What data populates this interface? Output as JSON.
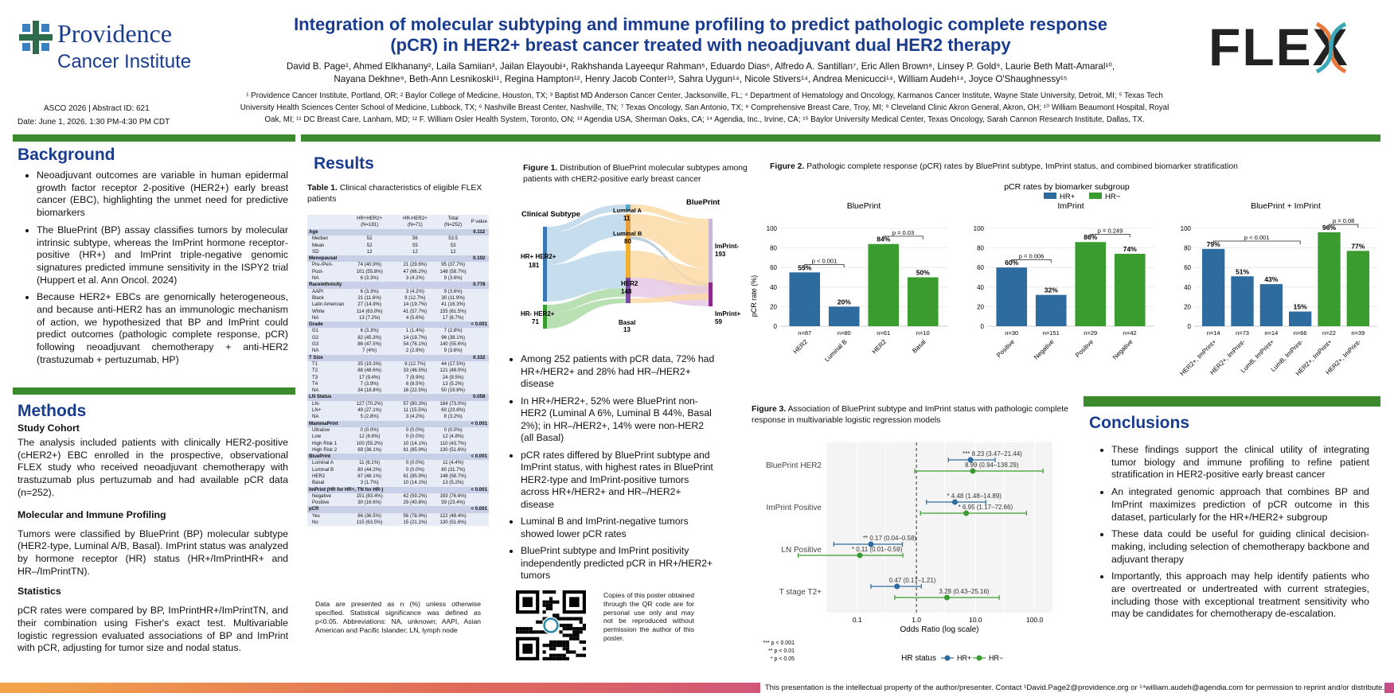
{
  "header": {
    "logo_main": "Providence",
    "logo_sub": "Cancer Institute",
    "flex_logo": "FLEX",
    "title_line1": "Integration of molecular subtyping and immune profiling to predict pathologic complete response",
    "title_line2": "(pCR) in HER2+ breast cancer treated with neoadjuvant dual HER2 therapy",
    "authors_line1": "David B. Page¹, Ahmed Elkhanany², Laila Samiian³, Jailan Elayoubi⁴, Rakhshanda Layeequr Rahman⁵, Eduardo Dias⁶, Alfredo A. Santillan⁷, Eric Allen Brown⁸, Linsey P. Gold⁹, Laurie Beth Matt-Amaral¹⁰,",
    "authors_line2": "Nayana Dekhne⁹, Beth-Ann Lesnikoski¹¹, Regina Hampton¹², Henry Jacob Conter¹³, Sahra Uygun¹⁴, Nicole Stivers¹⁴, Andrea Menicucci¹⁴, William Audeh¹⁴, Joyce O'Shaughnessy¹⁵",
    "affil_line1": "¹ Providence Cancer Institute, Portland, OR; ² Baylor College of Medicine, Houston, TX; ³ Baptist MD Anderson Cancer Center, Jacksonville, FL; ⁴ Department of Hematology and Oncology, Karmanos Cancer Institute, Wayne State University, Detroit, MI; ⁵ Texas Tech",
    "affil_line2": "University Health Sciences Center School of Medicine, Lubbock, TX; ⁶ Nashville Breast Center, Nashville, TN; ⁷ Texas Oncology, San Antonio, TX; ⁸ Comprehensive Breast Care, Troy, MI; ⁹ Cleveland Clinic Akron General, Akron, OH; ¹⁰ William Beaumont Hospital, Royal",
    "affil_line3": "Oak, MI; ¹¹ DC Breast Care, Lanham, MD; ¹² F. William Osler Health System, Toronto, ON; ¹³ Agendia USA, Sherman Oaks, CA; ¹⁴ Agendia, Inc., Irvine, CA; ¹⁵ Baylor University Medical Center, Texas Oncology, Sarah Cannon Research Institute, Dallas, TX.",
    "asco": "ASCO 2026 | Abstract ID: 621",
    "date": "Date: June 1, 2026, 1:30 PM-4:30 PM CDT"
  },
  "background": {
    "heading": "Background",
    "bullets": [
      "Neoadjuvant outcomes are variable in human epidermal growth factor receptor 2-positive (HER2+) early breast cancer (EBC), highlighting the unmet need for predictive biomarkers",
      "The BluePrint (BP) assay classifies tumors by molecular intrinsic subtype, whereas the ImPrint hormone receptor-positive (HR+) and ImPrint triple-negative genomic signatures predicted immune sensitivity in the ISPY2 trial (Huppert et al. Ann Oncol. 2024)",
      "Because HER2+ EBCs are genomically heterogeneous, and because anti-HER2 has an immunologic mechanism of action, we hypothesized that BP and ImPrint could predict outcomes (pathologic complete response, pCR) following neoadjuvant chemotherapy + anti-HER2 (trastuzumab + pertuzumab, HP)"
    ]
  },
  "methods": {
    "heading": "Methods",
    "sub1": "Study Cohort",
    "p1": "The analysis included patients with clinically HER2-positive (cHER2+) EBC enrolled in the prospective, observational FLEX study who received neoadjuvant chemotherapy with trastuzumab plus pertuzumab and had available pCR data (n=252).",
    "sub2": "Molecular and Immune Profiling",
    "p2": "Tumors were classified by BluePrint (BP) molecular subtype (HER2-type, Luminal A/B, Basal). ImPrint status was analyzed by hormone receptor (HR) status (HR+/ImPrintHR+ and HR–/ImPrintTN).",
    "sub3": "Statistics",
    "p3": "pCR rates were compared by BP, ImPrintHR+/ImPrintTN, and their combination using Fisher's exact test. Multivariable logistic regression evaluated associations of BP and ImPrint with pCR, adjusting for tumor size and nodal status."
  },
  "results": {
    "heading": "Results",
    "table_caption_bold": "Table 1.",
    "table_caption": " Clinical characteristics of eligible FLEX patients",
    "table_header": [
      "",
      "HR+HER2+ (N=181)",
      "HR-HER2+ (N=71)",
      "Total (N=252)",
      "P value"
    ],
    "table_rows": [
      [
        "sec",
        "Age",
        "",
        "",
        "",
        "0.112"
      ],
      [
        "r",
        "Median",
        "52",
        "56",
        "53.5",
        ""
      ],
      [
        "r",
        "Mean",
        "52",
        "55",
        "53",
        ""
      ],
      [
        "r",
        "SD",
        "12",
        "12",
        "12",
        ""
      ],
      [
        "sec",
        "Menopausal",
        "",
        "",
        "",
        "0.102"
      ],
      [
        "r",
        "Pre-/Peri-",
        "74 (40.9%)",
        "21 (29.6%)",
        "95 (37.7%)",
        ""
      ],
      [
        "r",
        "Post-",
        "101 (55.8%)",
        "47 (66.2%)",
        "148 (58.7%)",
        ""
      ],
      [
        "r",
        "NA",
        "6 (3.3%)",
        "3 (4.2%)",
        "9 (3.6%)",
        ""
      ],
      [
        "sec",
        "Race/ethnicity",
        "",
        "",
        "",
        "0.778"
      ],
      [
        "r",
        "AAPI",
        "6 (3.3%)",
        "3 (4.2%)",
        "9 (3.6%)",
        ""
      ],
      [
        "r",
        "Black",
        "21 (11.6%)",
        "9 (12.7%)",
        "30 (11.9%)",
        ""
      ],
      [
        "r",
        "Latin American",
        "27 (14.9%)",
        "14 (19.7%)",
        "41 (16.3%)",
        ""
      ],
      [
        "r",
        "White",
        "114 (63.0%)",
        "41 (57.7%)",
        "155 (61.5%)",
        ""
      ],
      [
        "r",
        "NA",
        "13 (7.2%)",
        "4 (5.6%)",
        "17 (6.7%)",
        ""
      ],
      [
        "sec",
        "Grade",
        "",
        "",
        "",
        "< 0.001"
      ],
      [
        "r",
        "G1",
        "6 (3.3%)",
        "1 (1.4%)",
        "7 (2.8%)",
        ""
      ],
      [
        "r",
        "G2",
        "82 (45.3%)",
        "14 (19.7%)",
        "96 (38.1%)",
        ""
      ],
      [
        "r",
        "G3",
        "86 (47.5%)",
        "54 (76.1%)",
        "140 (55.6%)",
        ""
      ],
      [
        "r",
        "NA",
        "7 (4%)",
        "2 (2.8%)",
        "9 (3.6%)",
        ""
      ],
      [
        "sec",
        "T Size",
        "",
        "",
        "",
        "0.332"
      ],
      [
        "r",
        "T1",
        "35 (19.3%)",
        "9 (12.7%)",
        "44 (17.5%)",
        ""
      ],
      [
        "r",
        "T2",
        "88 (48.6%)",
        "33 (46.5%)",
        "121 (48.0%)",
        ""
      ],
      [
        "r",
        "T3",
        "17 (9.4%)",
        "7 (9.9%)",
        "24 (9.5%)",
        ""
      ],
      [
        "r",
        "T4",
        "7 (3.9%)",
        "6 (8.5%)",
        "13 (5.2%)",
        ""
      ],
      [
        "r",
        "NA",
        "34 (18.8%)",
        "16 (22.5%)",
        "50 (19.8%)",
        ""
      ],
      [
        "sec",
        "LN Status",
        "",
        "",
        "",
        "0.058"
      ],
      [
        "r",
        "LN-",
        "127 (70.2%)",
        "57 (80.3%)",
        "184 (73.0%)",
        ""
      ],
      [
        "r",
        "LN+",
        "49 (27.1%)",
        "11 (15.5%)",
        "60 (23.8%)",
        ""
      ],
      [
        "r",
        "NA",
        "5 (2.8%)",
        "3 (4.2%)",
        "8 (3.2%)",
        ""
      ],
      [
        "sec",
        "MammaPrint",
        "",
        "",
        "",
        "< 0.001"
      ],
      [
        "r",
        "Ultralow",
        "0 (0.0%)",
        "0 (0.0%)",
        "0 (0.0%)",
        ""
      ],
      [
        "r",
        "Low",
        "12 (6.6%)",
        "0 (0.0%)",
        "12 (4.8%)",
        ""
      ],
      [
        "r",
        "High Risk 1",
        "100 (55.2%)",
        "10 (14.1%)",
        "110 (43.7%)",
        ""
      ],
      [
        "r",
        "High Risk 2",
        "69 (38.1%)",
        "61 (85.9%)",
        "130 (51.6%)",
        ""
      ],
      [
        "sec",
        "BluePrint",
        "",
        "",
        "",
        "< 0.001"
      ],
      [
        "r",
        "Luminal A",
        "11 (6.1%)",
        "0 (0.0%)",
        "11 (4.4%)",
        ""
      ],
      [
        "r",
        "Luminal B",
        "80 (44.2%)",
        "0 (0.0%)",
        "80 (31.7%)",
        ""
      ],
      [
        "r",
        "HER2",
        "87 (48.1%)",
        "61 (85.9%)",
        "148 (58.7%)",
        ""
      ],
      [
        "r",
        "Basal",
        "3 (1.7%)",
        "10 (14.1%)",
        "13 (5.2%)",
        ""
      ],
      [
        "sec",
        "ImPrint (HR for HR+, TN for HR-)",
        "",
        "",
        "",
        "< 0.001"
      ],
      [
        "r",
        "Negative",
        "151 (83.4%)",
        "42 (59.2%)",
        "193 (76.6%)",
        ""
      ],
      [
        "r",
        "Positive",
        "30 (16.6%)",
        "29 (40.8%)",
        "59 (23.4%)",
        ""
      ],
      [
        "sec",
        "pCR",
        "",
        "",
        "",
        "< 0.001"
      ],
      [
        "r",
        "Yes",
        "66 (36.5%)",
        "56 (78.9%)",
        "122 (48.4%)",
        ""
      ],
      [
        "r",
        "No",
        "115 (63.5%)",
        "15 (21.1%)",
        "130 (51.6%)",
        ""
      ]
    ],
    "table_note": "Data are presented as n (%) unless otherwise specified. Statistical significance was defined as p<0.05. Abbreviations: NA, unknown; AAPI, Asian American and Pacific Islander; LN, lymph node",
    "fig1_bold": "Figure 1.",
    "fig1_caption": " Distribution of BluePrint molecular subtypes among patients with  cHER2-positive early breast cancer",
    "sankey": {
      "left_title": "Clinical Subtype",
      "right_title": "BluePrint",
      "hr_pos": "HR+ HER2+",
      "hr_pos_n": "181",
      "hr_neg": "HR- HER2+",
      "hr_neg_n": "71",
      "luma": "Luminal A",
      "luma_n": "11",
      "lumb": "Luminal B",
      "lumb_n": "80",
      "her2": "HER2",
      "her2_n": "148",
      "basal": "Basal",
      "basal_n": "13",
      "imneg": "ImPrint-",
      "imneg_n": "193",
      "impos": "ImPrint+",
      "impos_n": "59"
    },
    "bullets": [
      "Among 252 patients with pCR data, 72% had HR+/HER2+ and 28% had HR–/HER2+ disease",
      "In HR+/HER2+, 52% were BluePrint non-HER2 (Luminal A 6%, Luminal B 44%, Basal 2%); in HR–/HER2+, 14% were non-HER2 (all Basal)",
      "pCR rates differed by BluePrint subtype and ImPrint status, with highest rates in BluePrint HER2-type and ImPrint-positive tumors across HR+/HER2+ and HR–/HER2+ disease",
      "Luminal B and ImPrint-negative tumors showed lower pCR rates",
      "BluePrint subtype and ImPrint positivity independently predicted pCR in HR+/HER2+ tumors"
    ],
    "qr_text": "Copies of this poster obtained through the QR code are for personal use only and may not be reproduced without permission the author of this poster.",
    "fig2_bold": "Figure 2.",
    "fig2_caption": " Pathologic complete response (pCR) rates by BluePrint subtype, ImPrint status, and combined biomarker stratification",
    "fig3_bold": "Figure 3.",
    "fig3_caption": " Association of BluePrint subtype and ImPrint status with pathologic complete response in multivariable logistic regression models"
  },
  "chart_data": [
    {
      "type": "bar",
      "title": "pCR rates by biomarker subgroup",
      "legend": [
        "HR+",
        "HR−"
      ],
      "ylabel": "pCR rate (%)",
      "ylim": [
        0,
        100
      ],
      "colors": {
        "HR+": "#2e6b9e",
        "HR−": "#3a9c2e"
      },
      "panels": [
        {
          "title": "BluePrint",
          "categories": [
            "HER2",
            "Luminal B",
            "HER2",
            "Basal"
          ],
          "groups": [
            "HR+",
            "HR+",
            "HR−",
            "HR−"
          ],
          "values": [
            55,
            20,
            84,
            50
          ],
          "labels": [
            "55%",
            "20%",
            "84%",
            "50%"
          ],
          "n": [
            "n=87",
            "n=80",
            "n=61",
            "n=10"
          ],
          "brackets": [
            {
              "from": 0,
              "to": 1,
              "p": "p < 0.001"
            },
            {
              "from": 2,
              "to": 3,
              "p": "p = 0.03"
            }
          ]
        },
        {
          "title": "ImPrint",
          "categories": [
            "Positive",
            "Negative",
            "Positive",
            "Negative"
          ],
          "groups": [
            "HR+",
            "HR+",
            "HR−",
            "HR−"
          ],
          "values": [
            60,
            32,
            86,
            74
          ],
          "labels": [
            "60%",
            "32%",
            "86%",
            "74%"
          ],
          "n": [
            "n=30",
            "n=151",
            "n=29",
            "n=42"
          ],
          "brackets": [
            {
              "from": 0,
              "to": 1,
              "p": "p = 0.006"
            },
            {
              "from": 2,
              "to": 3,
              "p": "p = 0.249"
            }
          ]
        },
        {
          "title": "BluePrint + ImPrint",
          "categories": [
            "HER2+, ImPrint+",
            "HER2+, ImPrint-",
            "LumB, ImPrint+",
            "LumB, ImPrint-",
            "HER2+, ImPrint+",
            "HER2+, ImPrint-"
          ],
          "groups": [
            "HR+",
            "HR+",
            "HR+",
            "HR+",
            "HR−",
            "HR−"
          ],
          "values": [
            79,
            51,
            43,
            15,
            96,
            77
          ],
          "labels": [
            "79%",
            "51%",
            "43%",
            "15%",
            "96%",
            "77%"
          ],
          "n": [
            "n=14",
            "n=73",
            "n=14",
            "n=66",
            "n=22",
            "n=39"
          ],
          "brackets": [
            {
              "from": 0,
              "to": 3,
              "p": "p < 0.001"
            },
            {
              "from": 4,
              "to": 5,
              "p": "p = 0.08"
            }
          ]
        }
      ]
    },
    {
      "type": "scatter",
      "subtype": "forest",
      "xlabel": "Odds Ratio (log scale)",
      "xscale": "log",
      "xticks": [
        "0.1",
        "0.3",
        "1.0",
        "3.0",
        "10.0",
        "30.0",
        "100.0"
      ],
      "legend_title": "HR status",
      "legend": [
        "HR+",
        "HR−"
      ],
      "rows": [
        {
          "label": "BluePrint HER2",
          "hrpos": {
            "or": 8.23,
            "lo": 3.47,
            "hi": 21.44,
            "text": "8.23 (3.47–21.44)",
            "sig": "***"
          },
          "hrneg": {
            "or": 8.99,
            "lo": 0.94,
            "hi": 138.29,
            "text": "8.99 (0.94–138.29)",
            "sig": ""
          }
        },
        {
          "label": "ImPrint Positive",
          "hrpos": {
            "or": 4.48,
            "lo": 1.48,
            "hi": 14.89,
            "text": "4.48  (1.48–14.89)",
            "sig": "*"
          },
          "hrneg": {
            "or": 6.95,
            "lo": 1.17,
            "hi": 72.66,
            "text": "6.95 (1.17–72.66)",
            "sig": "*"
          }
        },
        {
          "label": "LN Positive",
          "hrpos": {
            "or": 0.17,
            "lo": 0.04,
            "hi": 0.58,
            "text": "0.17 (0.04–0.58)",
            "sig": "**"
          },
          "hrneg": {
            "or": 0.11,
            "lo": 0.01,
            "hi": 0.59,
            "text": "0.11 (0.01–0.59)",
            "sig": "*"
          }
        },
        {
          "label": "T stage T2+",
          "hrpos": {
            "or": 0.47,
            "lo": 0.17,
            "hi": 1.21,
            "text": "0.47 (0.17–1.21)",
            "sig": ""
          },
          "hrneg": {
            "or": 3.28,
            "lo": 0.43,
            "hi": 25.16,
            "text": "3.28 (0.43–25.16)",
            "sig": ""
          }
        }
      ],
      "sig_note": [
        "*** p < 0.001",
        "** p < 0.01",
        "* p < 0.05"
      ]
    }
  ],
  "conclusions": {
    "heading": "Conclusions",
    "bullets": [
      "These findings support the clinical utility of integrating tumor biology and immune profiling to refine patient stratification in HER2-positive early breast cancer",
      "An integrated genomic approach that combines BP and ImPrint maximizes prediction of pCR outcome in this dataset, particularly for the HR+/HER2+ subgroup",
      "These data could be useful for guiding clinical decision-making, including selection of chemotherapy backbone and adjuvant therapy",
      "Importantly, this approach may help identify patients who are overtreated or undertreated with current strategies, including those with exceptional treatment sensitivity who may be candidates for chemotherapy de-escalation."
    ]
  },
  "footer": {
    "text": "This presentation is the intellectual property of the author/presenter. Contact ¹David.Page2@providence.org or ¹⁴william.audeh@agendia.com for permission to reprint and/or distribute."
  }
}
